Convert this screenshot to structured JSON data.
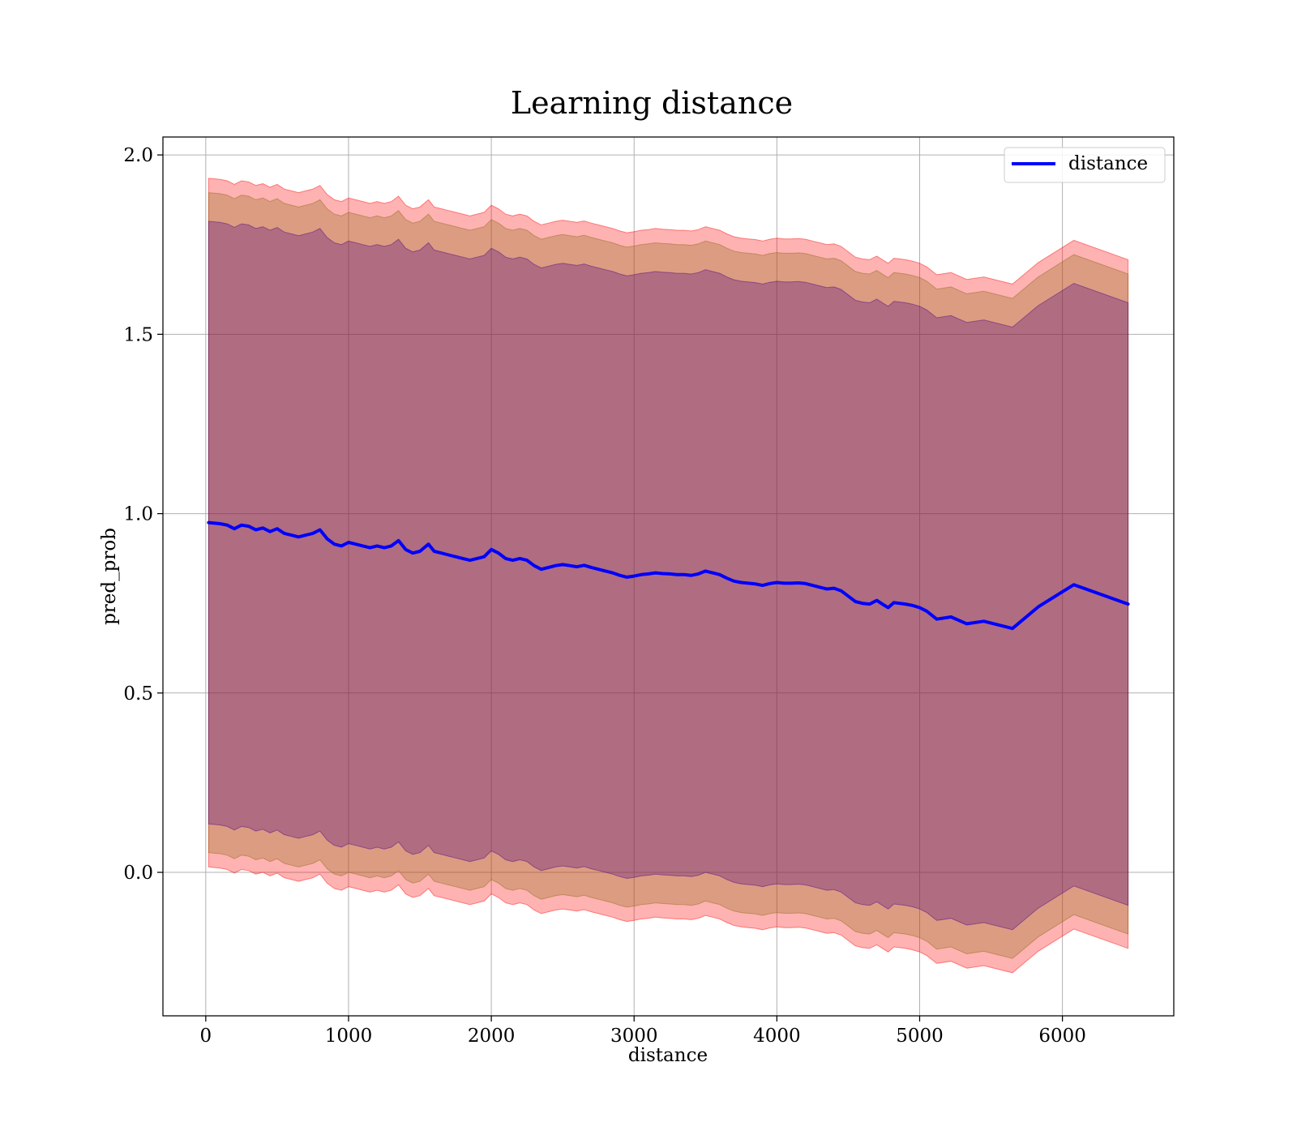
{
  "chart_data": {
    "type": "line",
    "title": "Learning distance",
    "xlabel": "distance",
    "ylabel": "pred_prob",
    "xlim": [
      -300,
      6780
    ],
    "ylim": [
      -0.4,
      2.05
    ],
    "xticks": [
      0,
      1000,
      2000,
      3000,
      4000,
      5000,
      6000
    ],
    "xtick_labels": [
      "0",
      "1000",
      "2000",
      "3000",
      "4000",
      "5000",
      "6000"
    ],
    "yticks": [
      0.0,
      0.5,
      1.0,
      1.5,
      2.0
    ],
    "ytick_labels": [
      "0.0",
      "0.5",
      "1.0",
      "1.5",
      "2.0"
    ],
    "grid": true,
    "legend": {
      "position": "top-right",
      "entries": [
        "distance"
      ]
    },
    "colors": {
      "line": "#0000ff",
      "band_outer": "#ff0000",
      "band_middle": "#8b6914",
      "band_inner": "#4b0082"
    },
    "series": [
      {
        "name": "distance",
        "x": [
          20,
          100,
          150,
          200,
          250,
          300,
          350,
          400,
          450,
          500,
          550,
          600,
          650,
          700,
          750,
          800,
          850,
          900,
          950,
          1000,
          1050,
          1100,
          1150,
          1200,
          1250,
          1300,
          1350,
          1400,
          1450,
          1500,
          1560,
          1600,
          1650,
          1700,
          1750,
          1800,
          1850,
          1900,
          1950,
          2000,
          2050,
          2100,
          2150,
          2200,
          2250,
          2300,
          2350,
          2400,
          2450,
          2500,
          2550,
          2600,
          2650,
          2700,
          2750,
          2800,
          2850,
          2900,
          2950,
          3000,
          3050,
          3100,
          3150,
          3200,
          3250,
          3300,
          3350,
          3400,
          3450,
          3500,
          3550,
          3600,
          3650,
          3700,
          3750,
          3800,
          3850,
          3900,
          3950,
          4000,
          4050,
          4100,
          4150,
          4200,
          4250,
          4300,
          4350,
          4400,
          4450,
          4500,
          4550,
          4600,
          4650,
          4700,
          4750,
          4780,
          4820,
          4900,
          4950,
          5000,
          5050,
          5120,
          5220,
          5330,
          5450,
          5650,
          5830,
          6080,
          6460
        ],
        "values": [
          0.975,
          0.972,
          0.968,
          0.958,
          0.968,
          0.965,
          0.955,
          0.96,
          0.95,
          0.958,
          0.945,
          0.94,
          0.935,
          0.94,
          0.945,
          0.955,
          0.93,
          0.915,
          0.91,
          0.92,
          0.915,
          0.91,
          0.905,
          0.91,
          0.905,
          0.91,
          0.925,
          0.9,
          0.89,
          0.895,
          0.915,
          0.895,
          0.89,
          0.885,
          0.88,
          0.875,
          0.87,
          0.875,
          0.88,
          0.9,
          0.89,
          0.875,
          0.87,
          0.875,
          0.87,
          0.855,
          0.845,
          0.85,
          0.855,
          0.858,
          0.855,
          0.852,
          0.856,
          0.85,
          0.845,
          0.84,
          0.835,
          0.828,
          0.823,
          0.826,
          0.83,
          0.832,
          0.835,
          0.833,
          0.832,
          0.83,
          0.83,
          0.828,
          0.832,
          0.84,
          0.835,
          0.83,
          0.82,
          0.812,
          0.808,
          0.806,
          0.804,
          0.8,
          0.805,
          0.808,
          0.806,
          0.806,
          0.807,
          0.805,
          0.8,
          0.795,
          0.79,
          0.792,
          0.785,
          0.77,
          0.755,
          0.75,
          0.748,
          0.758,
          0.745,
          0.738,
          0.752,
          0.748,
          0.744,
          0.738,
          0.728,
          0.706,
          0.712,
          0.693,
          0.7,
          0.68,
          0.74,
          0.802,
          0.748
        ]
      }
    ],
    "bands": [
      {
        "name": "outer",
        "lower_offset": -0.96,
        "upper_offset": 0.96
      },
      {
        "name": "middle",
        "lower_offset": -0.92,
        "upper_offset": 0.92
      },
      {
        "name": "inner",
        "lower_offset": -0.84,
        "upper_offset": 0.84
      }
    ]
  }
}
